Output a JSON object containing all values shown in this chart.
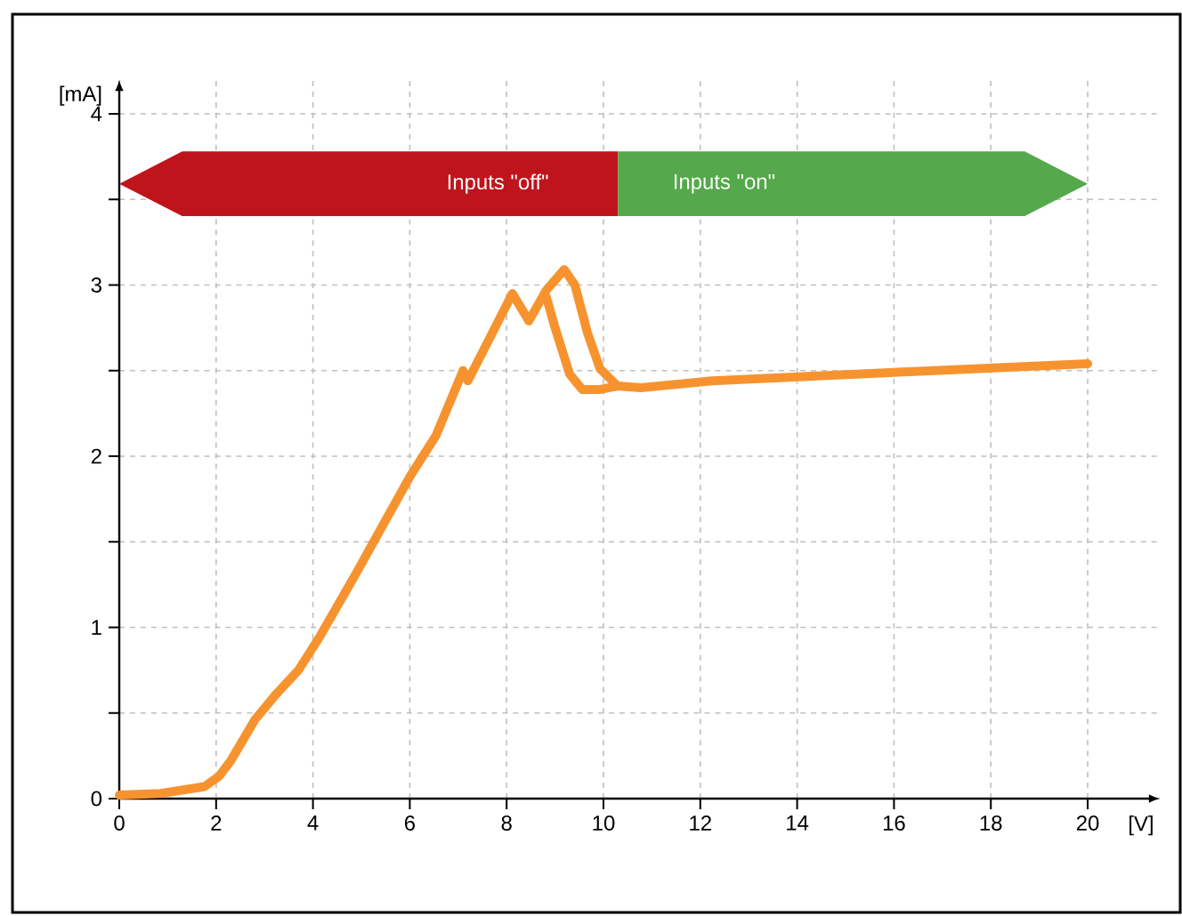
{
  "chart_data": {
    "type": "line",
    "xlabel": "[V]",
    "ylabel": "[mA]",
    "xlim": [
      0,
      21.5
    ],
    "ylim": [
      0,
      4.2
    ],
    "xticks": [
      0,
      2,
      4,
      6,
      8,
      10,
      12,
      14,
      16,
      18,
      20
    ],
    "yticks": [
      0,
      {
        "value": 0.5,
        "label": null
      },
      1,
      {
        "value": 1.5,
        "label": null
      },
      2,
      {
        "value": 2.5,
        "label": null
      },
      3,
      {
        "value": 3.5,
        "label": null
      },
      4
    ],
    "grid": true,
    "line_style": "solid",
    "marker": "none",
    "bands": [
      {
        "axis": "x",
        "from": 0,
        "to": 10.3,
        "label": "Inputs \"off\"",
        "color": "#c0141c"
      },
      {
        "axis": "x",
        "from": 10.3,
        "to": 20,
        "label": "Inputs \"on\"",
        "color": "#55a84b"
      }
    ],
    "series": [
      {
        "color": "#f7932f",
        "x": [
          0,
          0.85,
          1.76,
          2.06,
          2.3,
          2.8,
          3.24,
          3.7,
          4.15,
          4.9,
          6.0,
          6.54,
          7.1,
          7.2,
          8.12,
          8.46,
          8.82,
          9.19,
          9.41,
          9.67,
          9.93,
          10.29,
          10.77,
          12.24,
          16,
          20
        ],
        "values": [
          0.02,
          0.03,
          0.07,
          0.13,
          0.22,
          0.46,
          0.61,
          0.75,
          0.95,
          1.32,
          1.88,
          2.12,
          2.5,
          2.44,
          2.95,
          2.79,
          2.97,
          3.09,
          3.0,
          2.72,
          2.51,
          2.41,
          2.4,
          2.44,
          2.49,
          2.54
        ]
      },
      {
        "color": "#f7932f",
        "x": [
          8.82,
          9.0,
          9.3,
          9.56,
          9.93,
          10.29
        ],
        "values": [
          2.93,
          2.75,
          2.48,
          2.39,
          2.39,
          2.41
        ]
      }
    ]
  }
}
